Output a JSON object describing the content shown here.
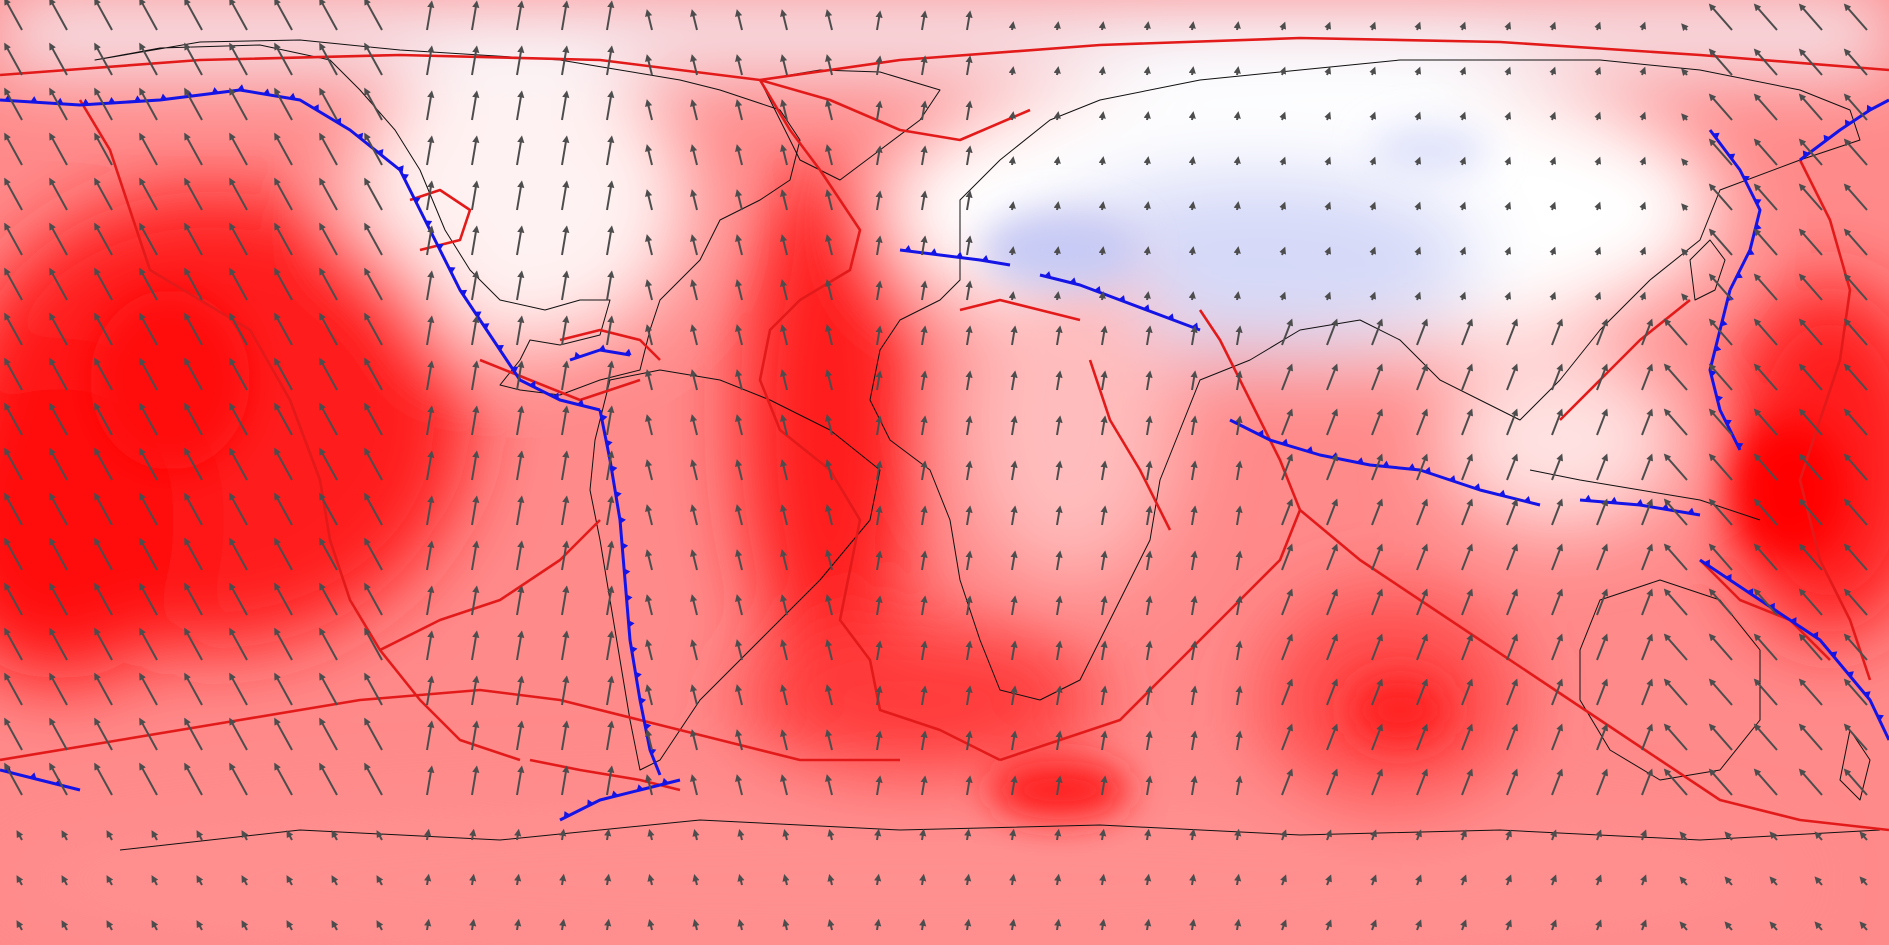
{
  "map": {
    "projection": "equirectangular",
    "extent": {
      "lon": [
        -180,
        180
      ],
      "lat": [
        -90,
        90
      ]
    },
    "colors": {
      "ocean_max_red": "#ff0000",
      "mid_red": "#ff7a7a",
      "light_red": "#ffd4d4",
      "neutral": "#fff4f4",
      "blue_low": "#c9cdf7",
      "plate_boundary": "#e31a1a",
      "subduction_zone": "#1414e6",
      "coastline": "#111111",
      "velocity_arrow": "#4d4d4d"
    },
    "layers": [
      "field-shading",
      "coastlines",
      "plate-boundaries",
      "subduction-zones",
      "velocity-arrows"
    ],
    "legend": null,
    "title": ""
  }
}
